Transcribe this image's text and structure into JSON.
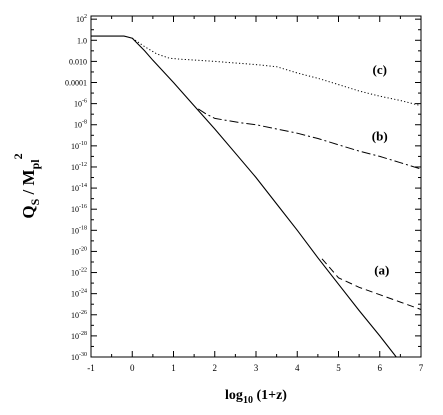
{
  "chart_data": {
    "type": "line",
    "xlabel": "log",
    "xlabel_sub": "10",
    "xlabel_rest": " (1+z)",
    "ylabel_main": "Q",
    "ylabel_sub1": "S",
    "ylabel_mid": " / M",
    "ylabel_sub2": "pl",
    "ylabel_sup": "2",
    "xlim": [
      -1,
      7
    ],
    "ylim_log10": [
      -30,
      2.3
    ],
    "log_y": true,
    "grid": false,
    "x_ticks": [
      {
        "v": -1,
        "label": "-1"
      },
      {
        "v": 0,
        "label": "0"
      },
      {
        "v": 1,
        "label": "1"
      },
      {
        "v": 2,
        "label": "2"
      },
      {
        "v": 3,
        "label": "3"
      },
      {
        "v": 4,
        "label": "4"
      },
      {
        "v": 5,
        "label": "5"
      },
      {
        "v": 6,
        "label": "6"
      },
      {
        "v": 7,
        "label": "7"
      }
    ],
    "y_ticks": [
      {
        "e": 2,
        "base": "10",
        "exp": "2"
      },
      {
        "e": 0,
        "label": "1.0"
      },
      {
        "e": -2,
        "label": "0.010"
      },
      {
        "e": -4,
        "label": "0.0001"
      },
      {
        "e": -6,
        "base": "10",
        "exp": "-6"
      },
      {
        "e": -8,
        "base": "10",
        "exp": "-8"
      },
      {
        "e": -10,
        "base": "10",
        "exp": "-10"
      },
      {
        "e": -12,
        "base": "10",
        "exp": "-12"
      },
      {
        "e": -14,
        "base": "10",
        "exp": "-14"
      },
      {
        "e": -16,
        "base": "10",
        "exp": "-16"
      },
      {
        "e": -18,
        "base": "10",
        "exp": "-18"
      },
      {
        "e": -20,
        "base": "10",
        "exp": "-20"
      },
      {
        "e": -22,
        "base": "10",
        "exp": "-22"
      },
      {
        "e": -24,
        "base": "10",
        "exp": "-24"
      },
      {
        "e": -26,
        "base": "10",
        "exp": "-26"
      },
      {
        "e": -28,
        "base": "10",
        "exp": "-28"
      },
      {
        "e": -30,
        "base": "10",
        "exp": "-30"
      }
    ],
    "series": [
      {
        "style": "solid",
        "points": [
          [
            -1,
            0.4
          ],
          [
            -0.2,
            0.4
          ],
          [
            0,
            0.2
          ],
          [
            0.3,
            -1.0
          ],
          [
            0.5,
            -1.9
          ],
          [
            1,
            -4.0
          ],
          [
            1.5,
            -6.2
          ],
          [
            2,
            -8.4
          ],
          [
            2.5,
            -10.7
          ],
          [
            3,
            -13.0
          ],
          [
            3.5,
            -15.5
          ],
          [
            4,
            -18.0
          ],
          [
            4.5,
            -20.6
          ],
          [
            5,
            -23.1
          ],
          [
            5.5,
            -25.6
          ],
          [
            6,
            -28.0
          ],
          [
            6.5,
            -30.5
          ],
          [
            7,
            -32.9
          ]
        ]
      },
      {
        "label": "(a)",
        "style": "dashed",
        "points": [
          [
            4.6,
            -20.7
          ],
          [
            4.8,
            -21.6
          ],
          [
            5,
            -22.5
          ],
          [
            5.5,
            -23.4
          ],
          [
            6,
            -24.1
          ],
          [
            6.5,
            -24.8
          ],
          [
            7,
            -25.5
          ]
        ]
      },
      {
        "label": "(b)",
        "style": "dashdot",
        "points": [
          [
            1.6,
            -6.5
          ],
          [
            1.8,
            -7.0
          ],
          [
            2,
            -7.4
          ],
          [
            2.3,
            -7.6
          ],
          [
            2.6,
            -7.8
          ],
          [
            3,
            -8.0
          ],
          [
            3.5,
            -8.4
          ],
          [
            4,
            -8.8
          ],
          [
            4.5,
            -9.3
          ],
          [
            5,
            -9.9
          ],
          [
            5.5,
            -10.5
          ],
          [
            6,
            -11.0
          ],
          [
            6.5,
            -11.6
          ],
          [
            7,
            -12.2
          ]
        ]
      },
      {
        "label": "(c)",
        "style": "dotted",
        "points": [
          [
            0,
            0.2
          ],
          [
            0.3,
            -0.6
          ],
          [
            0.6,
            -1.3
          ],
          [
            0.9,
            -1.7
          ],
          [
            1.2,
            -1.8
          ],
          [
            1.6,
            -1.9
          ],
          [
            2,
            -2.0
          ],
          [
            2.5,
            -2.15
          ],
          [
            3,
            -2.3
          ],
          [
            3.5,
            -2.5
          ],
          [
            4,
            -3.1
          ],
          [
            4.5,
            -3.6
          ],
          [
            5,
            -4.2
          ],
          [
            5.5,
            -4.8
          ],
          [
            6,
            -5.3
          ],
          [
            6.5,
            -5.7
          ],
          [
            7,
            -6.2
          ]
        ]
      }
    ]
  }
}
